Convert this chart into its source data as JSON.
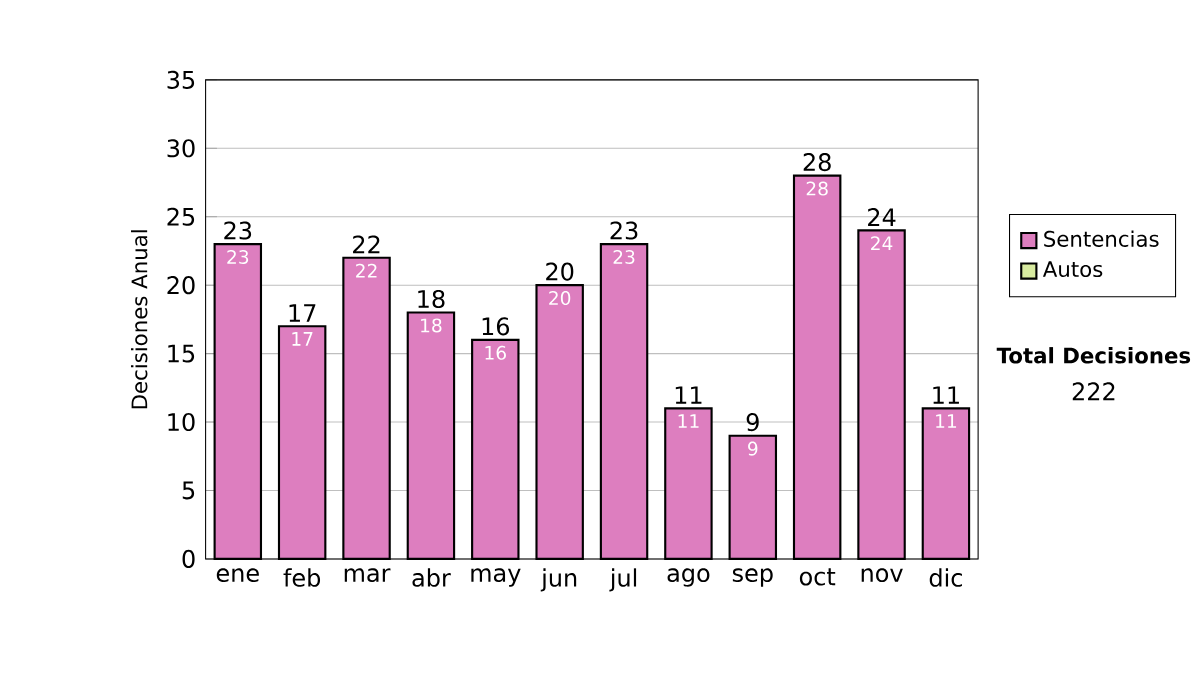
{
  "chart_data": {
    "type": "bar",
    "ylabel": "Decisiones Anual",
    "categories": [
      "ene",
      "feb",
      "mar",
      "abr",
      "may",
      "jun",
      "jul",
      "ago",
      "sep",
      "oct",
      "nov",
      "dic"
    ],
    "series": [
      {
        "name": "Sentencias",
        "color": "#dd7ebf",
        "values": [
          23,
          17,
          22,
          18,
          16,
          20,
          23,
          11,
          9,
          28,
          24,
          11
        ],
        "value_labels": [
          "23",
          "17",
          "22",
          "18",
          "16",
          "20",
          "23",
          "11",
          "9",
          "28",
          "24",
          "11"
        ]
      },
      {
        "name": "Autos",
        "color": "#d8eba0",
        "values": [
          0,
          0,
          0,
          0,
          0,
          0,
          0,
          0,
          0,
          0,
          0,
          0
        ]
      }
    ],
    "stacked": true,
    "totals": [
      "23",
      "17",
      "22",
      "18",
      "16",
      "20",
      "23",
      "11",
      "9",
      "28",
      "24",
      "11"
    ],
    "ylim": [
      0,
      35
    ],
    "yticks": [
      0,
      5,
      10,
      15,
      20,
      25,
      30,
      35
    ],
    "grid": "y",
    "legend": "right",
    "annotations": [
      "Total Decisiones",
      "222"
    ]
  }
}
